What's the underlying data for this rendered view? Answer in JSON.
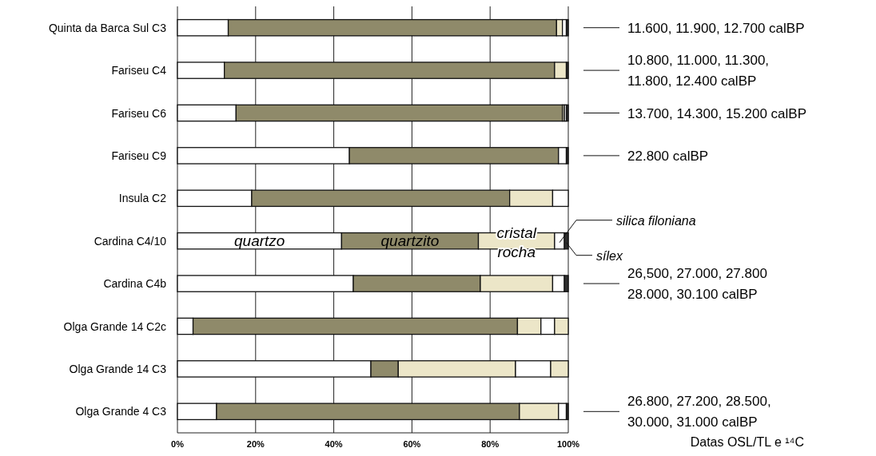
{
  "chart_data": {
    "type": "bar",
    "orientation": "horizontal",
    "stacked": true,
    "categories": [
      "Quinta da Barca Sul C3",
      "Fariseu C4",
      "Fariseu C6",
      "Fariseu C9",
      "Insula C2",
      "Cardina C4/10",
      "Cardina C4b",
      "Olga Grande 14 C2c",
      "Olga Grande 14 C3",
      "Olga Grande 4 C3"
    ],
    "series": [
      {
        "name": "quartzo",
        "color": "#ffffff",
        "values": [
          13,
          12,
          15,
          44,
          19,
          42,
          45,
          4,
          49.5,
          10
        ]
      },
      {
        "name": "quartzito",
        "color": "#8f8a6a",
        "values": [
          84,
          84.5,
          83.5,
          53.5,
          66,
          35,
          32.5,
          83,
          7,
          77.5
        ]
      },
      {
        "name": "cristal rocha",
        "color": "#ece6c8",
        "values": [
          1.5,
          3,
          0.5,
          0,
          11,
          19.5,
          18.5,
          6,
          30,
          10
        ]
      },
      {
        "name": "silica filoniana",
        "color": "#ffffff",
        "values": [
          1,
          0,
          0.5,
          2,
          4,
          2.5,
          3,
          3.5,
          9,
          2
        ]
      },
      {
        "name": "sílex",
        "color": "#2e2e2e",
        "colors": [
          null,
          null,
          null,
          null,
          null,
          null,
          null,
          "#ece6c8",
          "#ece6c8",
          null
        ],
        "values": [
          0.5,
          0.5,
          0.5,
          0.5,
          0,
          1,
          1,
          3.5,
          4.5,
          0.5
        ]
      }
    ],
    "xlim": [
      0,
      100
    ],
    "xticks": [
      {
        "value": 0,
        "label": "0%"
      },
      {
        "value": 20,
        "label": "20%"
      },
      {
        "value": 40,
        "label": "40%"
      },
      {
        "value": 60,
        "label": "60%"
      },
      {
        "value": 80,
        "label": "80%"
      },
      {
        "value": 100,
        "label": "100%"
      }
    ],
    "grid": "x",
    "legend": "right",
    "annotations": [
      "11.600, 11.900, 12.700 calBP",
      "10.800, 11.000, 11.300,\n11.800, 12.400  calBP",
      "13.700, 14.300, 15.200 calBP",
      "22.800 calBP",
      "26,500, 27.000, 27.800\n28.000, 30.100 calBP",
      "26.800, 27.200, 28.500,\n30.000, 31.000 calBP",
      "Datas OSL/TL e ¹⁴C"
    ]
  }
}
